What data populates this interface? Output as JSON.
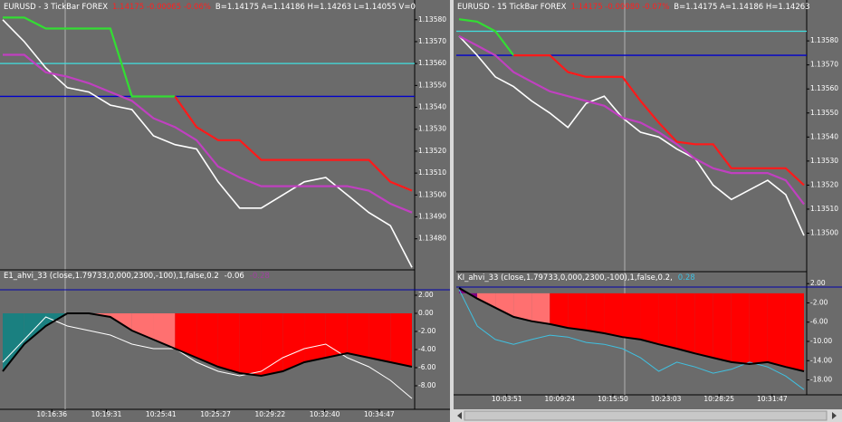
{
  "panels": [
    {
      "header": [
        {
          "text": "EURUSD - 3 TickBar FOREX",
          "color": "#ffffff"
        },
        {
          "text": "1.14175 -0.00065 -0.06%",
          "color": "#ff2020"
        },
        {
          "text": "B=1.14175 A=1.14186 H=1.14263 L=1.14055 V=0",
          "color": "#ffffff"
        }
      ],
      "price": {
        "ylim": [
          1.13465,
          1.13589
        ],
        "yticks": [
          {
            "value": 1.1358,
            "label": "1.13580"
          },
          {
            "value": 1.1357,
            "label": "1.13570"
          },
          {
            "value": 1.1356,
            "label": "1.13560"
          },
          {
            "value": 1.1355,
            "label": "1.13550"
          },
          {
            "value": 1.1354,
            "label": "1.13540"
          },
          {
            "value": 1.1353,
            "label": "1.13530"
          },
          {
            "value": 1.1352,
            "label": "1.13520"
          },
          {
            "value": 1.1351,
            "label": "1.13510"
          },
          {
            "value": 1.135,
            "label": "1.13500"
          },
          {
            "value": 1.1349,
            "label": "1.13490"
          },
          {
            "value": 1.1348,
            "label": "1.13480"
          }
        ],
        "series": [
          {
            "name": "close",
            "color": "#ffffff",
            "values": [
              1.1358,
              1.1357,
              1.13558,
              1.13549,
              1.13547,
              1.13541,
              1.13539,
              1.13527,
              1.13523,
              1.13521,
              1.13506,
              1.13494,
              1.13494,
              1.135,
              1.13506,
              1.13508,
              1.135,
              1.13492,
              1.13486,
              1.13467
            ]
          },
          {
            "name": "stop-up",
            "color": "#33dd33",
            "values": [
              1.13581,
              1.13581,
              1.13576,
              1.13576,
              1.13576,
              1.13576,
              1.13545,
              1.13545,
              1.13545,
              null,
              null,
              null,
              null,
              null,
              null,
              null,
              null,
              null,
              null,
              null
            ]
          },
          {
            "name": "stop-down",
            "color": "#ff1a1a",
            "values": [
              null,
              null,
              null,
              null,
              null,
              null,
              null,
              null,
              1.13545,
              1.13531,
              1.13525,
              1.13525,
              1.13516,
              1.13516,
              1.13516,
              1.13516,
              1.13516,
              1.13516,
              1.13506,
              1.13502
            ]
          },
          {
            "name": "band",
            "color": "#c040c0",
            "values": [
              1.13564,
              1.13564,
              1.13556,
              1.13554,
              1.13551,
              1.13547,
              1.13543,
              1.13535,
              1.13531,
              1.13525,
              1.13513,
              1.13508,
              1.13504,
              1.13504,
              1.13504,
              1.13504,
              1.13504,
              1.13502,
              1.13496,
              1.13492
            ]
          }
        ],
        "levels": [
          {
            "value": 1.1356,
            "color": "#40e0e0"
          },
          {
            "value": 1.13545,
            "color": "#0000cc"
          }
        ]
      },
      "indicator": {
        "label": "E1_ahvi_33 (close,1.79733,0,000,2300,-100),1,false,0.2",
        "readouts": [
          {
            "text": "-0.06",
            "color": "#ffffff"
          },
          {
            "text": "-0.28",
            "color": "#a040a0"
          }
        ],
        "ylim": [
          -9.9,
          3.3
        ],
        "yticks": [
          {
            "value": 2,
            "label": "2.00"
          },
          {
            "value": 0,
            "label": "0.00"
          },
          {
            "value": -2,
            "label": "-2.00"
          },
          {
            "value": -4,
            "label": "-4.00"
          },
          {
            "value": -6,
            "label": "-6.00"
          },
          {
            "value": -8,
            "label": "-8.00"
          }
        ],
        "main": [
          -6.4,
          -3.4,
          -1.4,
          0,
          0,
          -0.4,
          -1.9,
          -2.9,
          -3.9,
          -4.9,
          -5.9,
          -6.6,
          -6.9,
          -6.4,
          -5.4,
          -4.9,
          -4.4,
          -4.9,
          -5.4,
          -5.9
        ],
        "signal": {
          "color": "#ffffff",
          "values": [
            -5.4,
            -2.9,
            -0.4,
            -1.4,
            -1.9,
            -2.4,
            -3.4,
            -3.9,
            -3.9,
            -5.4,
            -6.4,
            -6.9,
            -6.4,
            -4.9,
            -3.9,
            -3.4,
            -4.9,
            -5.9,
            -7.4,
            -9.4
          ]
        },
        "fill_colors": [
          "#1a8080",
          "#1a8080",
          "#1a8080",
          "#800080",
          "#ff7070",
          "#ff7070",
          "#ff7070",
          "#ff7070",
          "#ff0000",
          "#ff0000",
          "#ff0000",
          "#ff0000",
          "#ff0000",
          "#ff0000",
          "#ff0000",
          "#ff0000",
          "#ff0000",
          "#ff0000",
          "#ff0000"
        ]
      },
      "times": [
        "10:16:36",
        "10:19:31",
        "10:25:41",
        "10:25:27",
        "10:29:22",
        "10:32:40",
        "10:34:47"
      ]
    },
    {
      "header": [
        {
          "text": "EURUSD - 15 TickBar FOREX",
          "color": "#ffffff"
        },
        {
          "text": "1.14175 -0.00080 -0.07%",
          "color": "#ff2020"
        },
        {
          "text": "B=1.14175 A=1.14186 H=1.14263",
          "color": "#ffffff"
        }
      ],
      "price": {
        "ylim": [
          1.13487,
          1.13597
        ],
        "yticks": [
          {
            "value": 1.1358,
            "label": "1.13580"
          },
          {
            "value": 1.1357,
            "label": "1.13570"
          },
          {
            "value": 1.1356,
            "label": "1.13560"
          },
          {
            "value": 1.1355,
            "label": "1.13550"
          },
          {
            "value": 1.1354,
            "label": "1.13540"
          },
          {
            "value": 1.1353,
            "label": "1.13530"
          },
          {
            "value": 1.1352,
            "label": "1.13520"
          },
          {
            "value": 1.1351,
            "label": "1.13510"
          },
          {
            "value": 1.135,
            "label": "1.13500"
          }
        ],
        "series": [
          {
            "name": "close",
            "color": "#ffffff",
            "values": [
              1.13582,
              1.13574,
              1.13565,
              1.13561,
              1.13555,
              1.1355,
              1.13544,
              1.13554,
              1.13557,
              1.13548,
              1.13542,
              1.1354,
              1.13535,
              1.13531,
              1.1352,
              1.13514,
              1.13518,
              1.13522,
              1.13516,
              1.13499
            ]
          },
          {
            "name": "stop-up",
            "color": "#33dd33",
            "values": [
              1.13589,
              1.13588,
              1.13584,
              1.13574,
              null,
              null,
              null,
              null,
              null,
              null,
              null,
              null,
              null,
              null,
              null,
              null,
              null,
              null,
              null,
              null
            ]
          },
          {
            "name": "stop-down",
            "color": "#ff1a1a",
            "values": [
              null,
              null,
              null,
              1.13574,
              1.13574,
              1.13574,
              1.13567,
              1.13565,
              1.13565,
              1.13565,
              1.13555,
              1.13546,
              1.13538,
              1.13537,
              1.13537,
              1.13527,
              1.13527,
              1.13527,
              1.13527,
              1.1352
            ]
          },
          {
            "name": "band",
            "color": "#c040c0",
            "values": [
              1.13582,
              1.13578,
              1.13574,
              1.13567,
              1.13563,
              1.13559,
              1.13557,
              1.13555,
              1.13553,
              1.13548,
              1.13546,
              1.13542,
              1.13537,
              1.13531,
              1.13527,
              1.13525,
              1.13525,
              1.13525,
              1.13522,
              1.13512
            ]
          }
        ],
        "levels": [
          {
            "value": 1.13584,
            "color": "#40e0e0"
          },
          {
            "value": 1.13574,
            "color": "#0000cc"
          }
        ]
      },
      "indicator": {
        "label": "KI_ahvi_33 (close,1.79733,0,000,2300,-100),1,false,0.2,",
        "readouts": [
          {
            "text": "0.28",
            "color": "#40c0e0"
          }
        ],
        "ylim": [
          -22.6,
          2.6
        ],
        "yticks": [
          {
            "value": 2,
            "label": "2.00"
          },
          {
            "value": -2,
            "label": "-2.00"
          },
          {
            "value": -6,
            "label": "-6.00"
          },
          {
            "value": -10,
            "label": "-10.00"
          },
          {
            "value": -14,
            "label": "-14.00"
          },
          {
            "value": -18,
            "label": "-18.00"
          }
        ],
        "main": [
          1.1,
          -1.1,
          -3.0,
          -4.9,
          -5.8,
          -6.4,
          -7.2,
          -7.7,
          -8.3,
          -9.1,
          -9.6,
          -10.6,
          -11.5,
          -12.5,
          -13.4,
          -14.3,
          -14.7,
          -14.3,
          -15.3,
          -16.2
        ],
        "signal": {
          "color": "#40c0e0",
          "values": [
            0.8,
            -6.8,
            -9.6,
            -10.6,
            -9.6,
            -8.7,
            -9.1,
            -10.2,
            -10.6,
            -11.5,
            -13.4,
            -16.2,
            -14.3,
            -15.3,
            -16.6,
            -15.8,
            -14.3,
            -15.3,
            -17.2,
            -20
          ]
        },
        "fill_colors": [
          "#800080",
          "#ff7070",
          "#ff7070",
          "#ff7070",
          "#ff7070",
          "#ff0000",
          "#ff0000",
          "#ff0000",
          "#ff0000",
          "#ff0000",
          "#ff0000",
          "#ff0000",
          "#ff0000",
          "#ff0000",
          "#ff0000",
          "#ff0000",
          "#ff0000",
          "#ff0000",
          "#ff0000"
        ]
      },
      "times": [
        "10:03:51",
        "10:09:24",
        "10:15:50",
        "10:23:03",
        "10:28:25",
        "10:31:47"
      ]
    }
  ]
}
